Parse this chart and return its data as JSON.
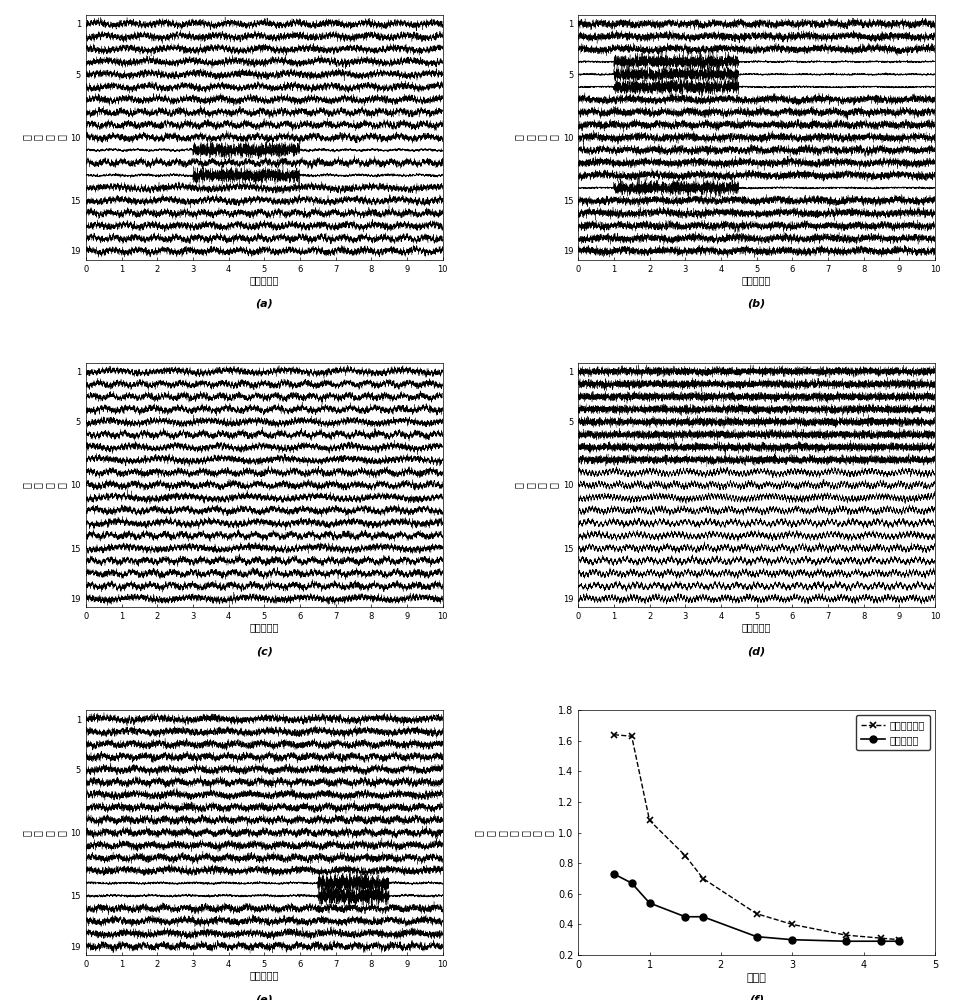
{
  "n_channels": 19,
  "n_samples": 5000,
  "time_end": 10,
  "subplot_labels": [
    "(a)",
    "(b)",
    "(c)",
    "(d)",
    "(e)",
    "(f)"
  ],
  "eeg_xlabel": "时间（秒）",
  "eeg_ylabel_left": "通\n道\n序\n号",
  "eeg_ylabel_d": "典\n型\n变\n量",
  "yticks": [
    1,
    5,
    10,
    15,
    19
  ],
  "xticks": [
    0,
    1,
    2,
    3,
    4,
    5,
    6,
    7,
    8,
    9,
    10
  ],
  "line_color": "#000000",
  "background_color": "#ffffff",
  "snr_x": [
    0.5,
    0.75,
    1.0,
    1.5,
    1.75,
    2.5,
    3.0,
    3.75,
    4.25,
    4.5
  ],
  "cca_y": [
    1.64,
    1.63,
    1.08,
    0.85,
    0.7,
    0.47,
    0.4,
    0.33,
    0.31,
    0.3
  ],
  "inv_y": [
    0.73,
    0.67,
    0.54,
    0.45,
    0.45,
    0.32,
    0.3,
    0.29,
    0.29,
    0.29
  ],
  "f_xlabel": "信噪比",
  "f_ylabel_chars": [
    "相",
    "对",
    "均",
    "方",
    "根",
    "误",
    "差"
  ],
  "f_ylim": [
    0.2,
    1.8
  ],
  "f_xlim": [
    0,
    5
  ],
  "f_yticks": [
    0.2,
    0.4,
    0.6,
    0.8,
    1.0,
    1.2,
    1.4,
    1.6,
    1.8
  ],
  "f_xticks": [
    0,
    1,
    2,
    3,
    4,
    5
  ],
  "legend_cca": "典型相关分析",
  "legend_inv": "本发明方法"
}
